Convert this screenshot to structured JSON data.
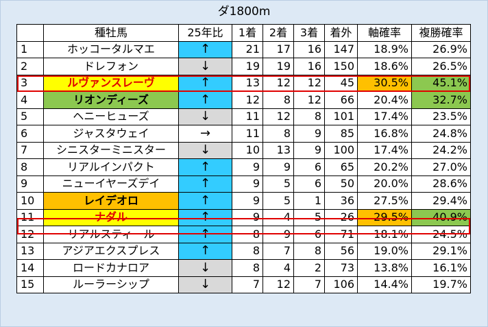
{
  "title": "ダ1800m",
  "headers": [
    "",
    "種牡馬",
    "25年比",
    "1着",
    "2着",
    "3着",
    "着外",
    "軸確率",
    "複勝確率"
  ],
  "rows": [
    {
      "no": "1",
      "name": "ホッコータルマエ",
      "arrow": "↑",
      "w1": "21",
      "w2": "17",
      "w3": "16",
      "out": "147",
      "axis": "18.9%",
      "place": "26.9%"
    },
    {
      "no": "2",
      "name": "ドレフォン",
      "arrow": "↓",
      "w1": "19",
      "w2": "19",
      "w3": "16",
      "out": "150",
      "axis": "18.6%",
      "place": "26.5%"
    },
    {
      "no": "3",
      "name": "ルヴァンスレーヴ",
      "arrow": "↑",
      "w1": "13",
      "w2": "12",
      "w3": "12",
      "out": "45",
      "axis": "30.5%",
      "place": "45.1%"
    },
    {
      "no": "4",
      "name": "リオンディーズ",
      "arrow": "↑",
      "w1": "12",
      "w2": "8",
      "w3": "12",
      "out": "66",
      "axis": "20.4%",
      "place": "32.7%"
    },
    {
      "no": "5",
      "name": "ヘニーヒューズ",
      "arrow": "↓",
      "w1": "11",
      "w2": "12",
      "w3": "8",
      "out": "101",
      "axis": "17.4%",
      "place": "23.5%"
    },
    {
      "no": "6",
      "name": "ジャスタウェイ",
      "arrow": "→",
      "w1": "11",
      "w2": "8",
      "w3": "9",
      "out": "85",
      "axis": "16.8%",
      "place": "24.8%"
    },
    {
      "no": "7",
      "name": "シニスターミニスター",
      "arrow": "↓",
      "w1": "10",
      "w2": "13",
      "w3": "9",
      "out": "100",
      "axis": "17.4%",
      "place": "24.2%"
    },
    {
      "no": "8",
      "name": "リアルインパクト",
      "arrow": "↑",
      "w1": "9",
      "w2": "9",
      "w3": "6",
      "out": "65",
      "axis": "20.2%",
      "place": "27.0%"
    },
    {
      "no": "9",
      "name": "ニューイヤーズデイ",
      "arrow": "↑",
      "w1": "9",
      "w2": "5",
      "w3": "6",
      "out": "50",
      "axis": "20.0%",
      "place": "28.6%"
    },
    {
      "no": "10",
      "name": "レイデオロ",
      "arrow": "↑",
      "w1": "9",
      "w2": "5",
      "w3": "1",
      "out": "36",
      "axis": "27.5%",
      "place": "29.4%"
    },
    {
      "no": "11",
      "name": "ナダル",
      "arrow": "↑",
      "w1": "9",
      "w2": "4",
      "w3": "5",
      "out": "26",
      "axis": "29.5%",
      "place": "40.9%"
    },
    {
      "no": "12",
      "name": "リアルスティール",
      "arrow": "↑",
      "w1": "8",
      "w2": "9",
      "w3": "6",
      "out": "71",
      "axis": "18.1%",
      "place": "24.5%"
    },
    {
      "no": "13",
      "name": "アジアエクスプレス",
      "arrow": "↑",
      "w1": "8",
      "w2": "7",
      "w3": "8",
      "out": "56",
      "axis": "19.0%",
      "place": "29.1%"
    },
    {
      "no": "14",
      "name": "ロードカナロア",
      "arrow": "↓",
      "w1": "8",
      "w2": "4",
      "w3": "2",
      "out": "73",
      "axis": "13.8%",
      "place": "16.1%"
    },
    {
      "no": "15",
      "name": "ルーラーシップ",
      "arrow": "↓",
      "w1": "7",
      "w2": "12",
      "w3": "7",
      "out": "106",
      "axis": "14.4%",
      "place": "19.7%"
    }
  ],
  "colors": {
    "up": "#33ccff",
    "down": "#d9d9d9",
    "yellow": "#ffff00",
    "green": "#8cc850",
    "orange": "#ffc000",
    "red_text": "#e00000"
  }
}
